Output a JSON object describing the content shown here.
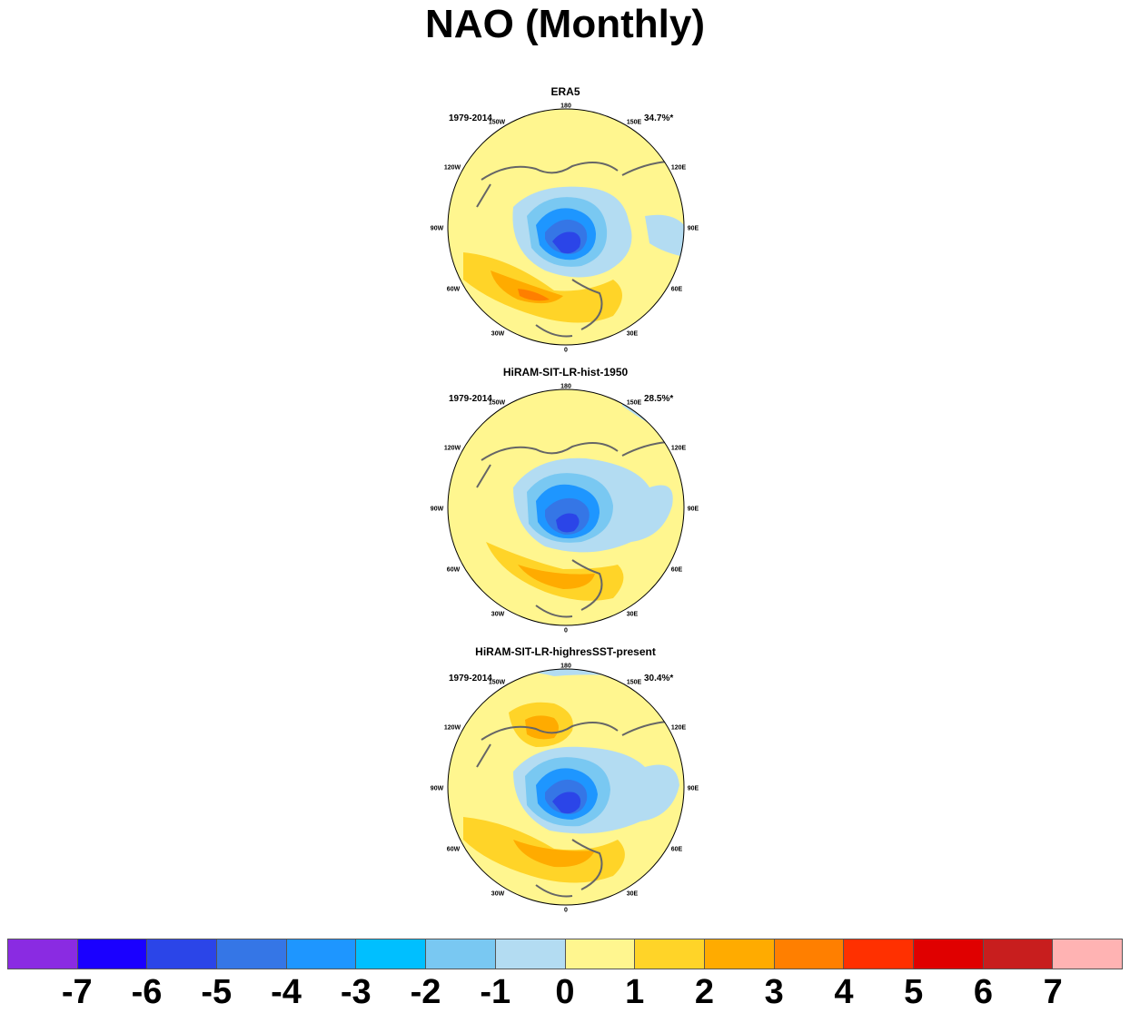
{
  "title": "NAO (Monthly)",
  "panels": [
    {
      "name": "ERA5",
      "period": "1979-2014",
      "variance": "34.7%*"
    },
    {
      "name": "HiRAM-SIT-LR-hist-1950",
      "period": "1979-2014",
      "variance": "28.5%*"
    },
    {
      "name": "HiRAM-SIT-LR-highresSST-present",
      "period": "1979-2014",
      "variance": "30.4%*"
    }
  ],
  "longitude_labels": [
    "180",
    "150E",
    "120E",
    "90E",
    "60E",
    "30E",
    "0",
    "30W",
    "60W",
    "90W",
    "120W",
    "150W"
  ],
  "colorbar": {
    "labels": [
      "-7",
      "-6",
      "-5",
      "-4",
      "-3",
      "-2",
      "-1",
      "0",
      "1",
      "2",
      "3",
      "4",
      "5",
      "6",
      "7"
    ],
    "colors": [
      "#8a2be2",
      "#1a00ff",
      "#2b45e8",
      "#3576e6",
      "#1e96ff",
      "#00bfff",
      "#79c8f2",
      "#b3dcf2",
      "#fff68f",
      "#ffd428",
      "#ffab00",
      "#ff7f00",
      "#ff3000",
      "#e00000",
      "#c81e1e",
      "#ffb3b3"
    ]
  },
  "map_style": {
    "background_color": "#fff68f",
    "coastline_color": "#666666"
  }
}
